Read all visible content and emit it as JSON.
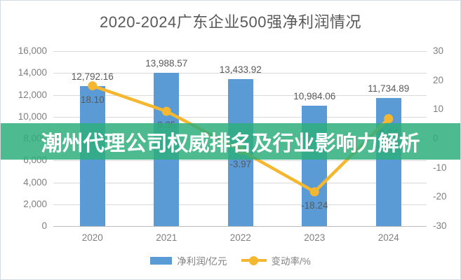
{
  "title": "2020-2024广东企业500强净利润情况",
  "overlay": {
    "text": "潮州代理公司权威排名及行业影响力解析",
    "band_color": "rgba(46,174,124,0.85)",
    "text_color": "#ffffff"
  },
  "chart_data": {
    "type": "bar+line combo",
    "categories": [
      "2020",
      "2021",
      "2022",
      "2023",
      "2024"
    ],
    "series": [
      {
        "name": "净利润/亿元",
        "type": "bar",
        "axis": "left",
        "color": "#5B9BD5",
        "values": [
          12792.16,
          13988.57,
          13433.92,
          10984.06,
          11734.89
        ],
        "labels": [
          "12,792.16",
          "13,988.57",
          "13,433.92",
          "10,984.06",
          "11,734.89"
        ]
      },
      {
        "name": "变动率/%",
        "type": "line",
        "axis": "right",
        "color": "#F5B72F",
        "values": [
          18.1,
          9.35,
          -3.97,
          -18.24,
          6.84
        ],
        "labels": [
          "18.10",
          "9.35",
          "-3.97",
          "-18.24",
          "6.84"
        ]
      }
    ],
    "left_axis": {
      "min": 0,
      "max": 16000,
      "step": 2000,
      "ticks": [
        {
          "v": 16000,
          "label": "16,000"
        },
        {
          "v": 14000,
          "label": "14,000"
        },
        {
          "v": 12000,
          "label": "12,000"
        },
        {
          "v": 10000,
          "label": "10,000"
        },
        {
          "v": 8000,
          "label": "8,000"
        },
        {
          "v": 6000,
          "label": "6,000"
        },
        {
          "v": 4000,
          "label": "4,000"
        },
        {
          "v": 2000,
          "label": "2,000"
        },
        {
          "v": 0,
          "label": "0"
        }
      ]
    },
    "right_axis": {
      "min": -30,
      "max": 30,
      "step": 10,
      "ticks": [
        {
          "v": 30,
          "label": "30"
        },
        {
          "v": 20,
          "label": "20"
        },
        {
          "v": 10,
          "label": "10"
        },
        {
          "v": 0,
          "label": "0"
        },
        {
          "v": -10,
          "label": "-10"
        },
        {
          "v": -20,
          "label": "-20"
        },
        {
          "v": -30,
          "label": "-30"
        }
      ]
    },
    "grid": true,
    "legend_position": "bottom"
  }
}
